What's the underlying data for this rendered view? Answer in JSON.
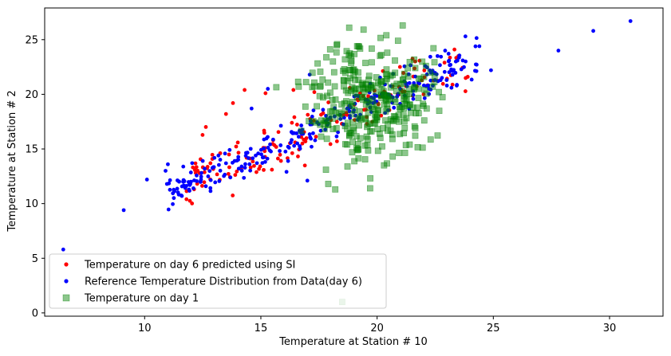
{
  "chart_data": {
    "type": "scatter",
    "title": "",
    "xlabel": "Temperature at Station # 10",
    "ylabel": "Temperature at Station # 2",
    "xlim": [
      5.7,
      32.3
    ],
    "ylim": [
      -0.3,
      27.9
    ],
    "xticks": [
      10,
      15,
      20,
      25,
      30
    ],
    "yticks": [
      0,
      5,
      10,
      15,
      20,
      25
    ],
    "xtick_labels": [
      "10",
      "15",
      "20",
      "25",
      "30"
    ],
    "ytick_labels": [
      "0",
      "5",
      "10",
      "15",
      "20",
      "25"
    ],
    "legend_position": "lower-left",
    "grid": false,
    "series": [
      {
        "name": "Temperature on day 6 predicted using SI",
        "color": "#ff0000",
        "marker": "circle",
        "generator": {
          "kind": "line-with-noise",
          "x_range": [
            11.8,
            23.9
          ],
          "slope": 0.89,
          "intercept": 1.5,
          "noise": 1.2,
          "count": 150,
          "seed": 11
        },
        "points": [
          [
            11.8,
            10.4
          ],
          [
            12.2,
            12.8
          ],
          [
            13.5,
            18.2
          ],
          [
            13.8,
            19.2
          ],
          [
            14.3,
            20.4
          ],
          [
            15.2,
            20.1
          ],
          [
            16.4,
            20.4
          ],
          [
            17.3,
            20.2
          ],
          [
            22.0,
            20.0
          ],
          [
            23.9,
            21.6
          ],
          [
            23.5,
            23.5
          ],
          [
            22.9,
            22.9
          ],
          [
            18.8,
            18.9
          ],
          [
            20.1,
            19.8
          ]
        ]
      },
      {
        "name": "Reference Temperature Distribution from Data(day 6)",
        "color": "#0000ff",
        "marker": "circle",
        "generator": {
          "kind": "line-with-noise",
          "x_range": [
            10.9,
            24.3
          ],
          "slope": 0.92,
          "intercept": 1.0,
          "noise": 0.8,
          "count": 290,
          "seed": 23
        },
        "points": [
          [
            6.5,
            5.8
          ],
          [
            9.1,
            9.4
          ],
          [
            10.1,
            12.2
          ],
          [
            10.9,
            13.0
          ],
          [
            11.0,
            13.6
          ],
          [
            11.6,
            10.7
          ],
          [
            12.1,
            11.4
          ],
          [
            12.5,
            13.9
          ],
          [
            14.6,
            18.7
          ],
          [
            15.3,
            20.5
          ],
          [
            17.0,
            12.1
          ],
          [
            17.1,
            21.8
          ],
          [
            23.8,
            25.3
          ],
          [
            24.4,
            24.4
          ],
          [
            24.9,
            22.2
          ],
          [
            27.8,
            24.0
          ],
          [
            29.3,
            25.8
          ],
          [
            30.9,
            26.7
          ],
          [
            23.2,
            20.6
          ],
          [
            22.6,
            23.5
          ]
        ]
      },
      {
        "name": "Temperature on day 1",
        "color": "#008000",
        "marker": "square",
        "generator": {
          "kind": "cloud",
          "center": [
            19.7,
            19.6
          ],
          "spread": [
            1.3,
            2.6
          ],
          "count": 320,
          "seed": 37
        },
        "points": [
          [
            18.5,
            1.0
          ],
          [
            18.8,
            26.1
          ],
          [
            21.1,
            26.3
          ],
          [
            17.9,
            11.8
          ],
          [
            18.2,
            11.3
          ],
          [
            19.7,
            11.4
          ],
          [
            17.8,
            13.1
          ],
          [
            20.3,
            13.5
          ],
          [
            21.4,
            15.4
          ],
          [
            18.1,
            23.0
          ],
          [
            20.4,
            25.4
          ],
          [
            22.1,
            22.6
          ],
          [
            19.2,
            24.4
          ],
          [
            20.9,
            24.9
          ],
          [
            17.6,
            17.6
          ]
        ]
      }
    ]
  }
}
